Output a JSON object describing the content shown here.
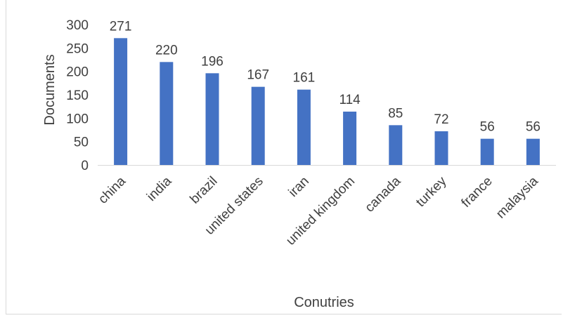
{
  "chart_data": {
    "type": "bar",
    "title": "",
    "xlabel": "Conutries",
    "ylabel": "Documents",
    "categories": [
      "china",
      "india",
      "brazil",
      "united states",
      "iran",
      "united kingdom",
      "canada",
      "turkey",
      "france",
      "malaysia"
    ],
    "values": [
      271,
      220,
      196,
      167,
      161,
      114,
      85,
      72,
      56,
      56
    ],
    "data_labels": [
      "271",
      "220",
      "196",
      "167",
      "161",
      "114",
      "85",
      "72",
      "56",
      "56"
    ],
    "ylim": [
      0,
      300
    ],
    "yticks": [
      "0",
      "50",
      "100",
      "150",
      "200",
      "250",
      "300"
    ],
    "grid": false,
    "legend": "none",
    "bar_color": "#4472c4"
  }
}
